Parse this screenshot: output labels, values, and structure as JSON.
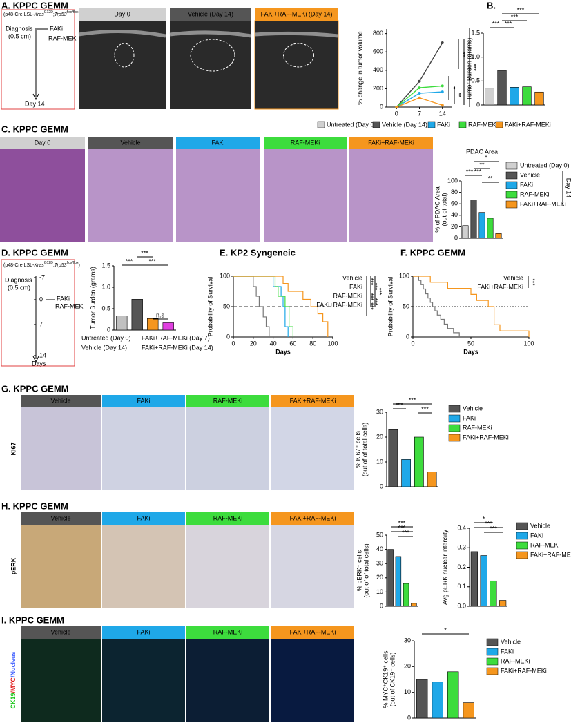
{
  "panels": {
    "A": {
      "title": "A. KPPC GEMM",
      "genotype": [
        "(p48-Cre;LSL-",
        "Kras",
        "G12D",
        ";",
        "Trp53",
        "flox/flox",
        ")"
      ],
      "diagnosis": "Diagnosis",
      "size": "(0.5 cm)",
      "drug1": "FAKi",
      "drug2": "RAF-MEKi",
      "end": "Day 14",
      "images": [
        "Day 0",
        "Vehicle (Day 14)",
        "FAKi+RAF-MEKi (Day 14)"
      ],
      "colors": [
        "#d0d0d0",
        "#555555",
        "#f5961e"
      ]
    },
    "B": {
      "title": "B."
    },
    "C": {
      "title": "C. KPPC GEMM",
      "legend": [
        "Untreated (Day 0)",
        "Vehicle (Day 14)",
        "FAKi",
        "RAF-MEKi",
        "FAKi+RAF-MEKi"
      ],
      "images": [
        "Day 0",
        "Vehicle",
        "FAKi",
        "RAF-MEKi",
        "FAKi+RAF-MEKi"
      ],
      "colors": [
        "#d0d0d0",
        "#555555",
        "#1fa8e8",
        "#3ddc3d",
        "#f5961e"
      ]
    },
    "D": {
      "title": "D. KPPC GEMM",
      "genotype": [
        "(p48-Cre;LSL-",
        "Kras",
        "G12D",
        ";",
        "Trp53",
        "flox/flox",
        ")"
      ],
      "diagnosis": "Diagnosis",
      "size": "(0.5 cm)",
      "timeline": [
        "-7",
        "0",
        "7",
        "14"
      ],
      "days": "Days",
      "drug1": "FAKi",
      "drug2": "RAF-MEKi"
    },
    "E": {
      "title": "E. KP2 Syngeneic"
    },
    "F": {
      "title": "F. KPPC GEMM"
    },
    "G": {
      "title": "G. KPPC GEMM",
      "marker": "Ki67",
      "images": [
        "Vehicle",
        "FAKi",
        "RAF-MEKi",
        "FAKi+RAF-MEKi"
      ],
      "colors": [
        "#555555",
        "#1fa8e8",
        "#3ddc3d",
        "#f5961e"
      ]
    },
    "H": {
      "title": "H. KPPC GEMM",
      "marker": "pERK",
      "images": [
        "Vehicle",
        "FAKi",
        "RAF-MEKi",
        "FAKi+RAF-MEKi"
      ],
      "colors": [
        "#555555",
        "#1fa8e8",
        "#3ddc3d",
        "#f5961e"
      ]
    },
    "I": {
      "title": "I. KPPC GEMM",
      "marker": [
        "CK19",
        "/MYC",
        "/Nucleus"
      ],
      "images": [
        "Vehicle",
        "FAKi",
        "RAF-MEKi",
        "FAKi+RAF-MEKi"
      ],
      "colors": [
        "#555555",
        "#1fa8e8",
        "#3ddc3d",
        "#f5961e"
      ]
    }
  },
  "chart_data": [
    {
      "type": "line",
      "ylabel": "% change in tumor volume",
      "x": [
        0,
        7,
        14
      ],
      "xlim": [
        -3,
        17
      ],
      "xticks": [
        0,
        7,
        14
      ],
      "ylim": [
        0,
        850
      ],
      "yticks": [
        0,
        200,
        400,
        600,
        800
      ],
      "series": [
        {
          "color": "#444444",
          "values": [
            0,
            280,
            700
          ]
        },
        {
          "color": "#1fa8e8",
          "values": [
            0,
            150,
            165
          ]
        },
        {
          "color": "#3ddc3d",
          "values": [
            0,
            210,
            230
          ]
        },
        {
          "color": "#f5961e",
          "values": [
            0,
            100,
            20
          ]
        }
      ],
      "annotations": [
        "**",
        "***",
        "***",
        "*",
        "**"
      ]
    },
    {
      "type": "bar",
      "ylabel": "Tumor Burden (grams)",
      "categories": [
        null,
        null,
        null,
        null,
        null
      ],
      "values": [
        0.35,
        0.72,
        0.37,
        0.38,
        0.27
      ],
      "colors": [
        "#d0d0d0",
        "#555555",
        "#1fa8e8",
        "#3ddc3d",
        "#f5961e"
      ],
      "ylim": [
        0,
        1.5
      ],
      "yticks": [
        0,
        0.5,
        {
          "value": 1,
          "label": "1.0"
        },
        {
          "value": 1.5,
          "label": "1.5"
        }
      ],
      "annotations": [
        "***",
        "***",
        "***",
        "***"
      ]
    },
    {
      "type": "bar",
      "title": "PDAC Area",
      "ylabel": "% of PDAC Area",
      "ylabel2": "(out of total)",
      "categories": [
        "Untreated (Day 0)",
        "Vehicle",
        "FAKi",
        "RAF-MEKi",
        "FAKi+RAF-MEKi"
      ],
      "values": [
        22,
        67,
        45,
        35,
        8
      ],
      "colors": [
        "#d0d0d0",
        "#555555",
        "#1fa8e8",
        "#3ddc3d",
        "#f5961e"
      ],
      "ylim": [
        0,
        100
      ],
      "yticks": [
        0,
        20,
        40,
        60,
        80,
        100
      ],
      "legend": "right",
      "legend_note": "Day 14",
      "annotations": [
        "***",
        "***",
        "**",
        "*",
        "**"
      ]
    },
    {
      "type": "bar",
      "ylabel": "Tumor Burden (grams)",
      "categories": [
        "Untreated (Day 0)",
        "Vehicle (Day 14)",
        "FAKi+RAF-MEKi (Day 7)",
        "FAKi+RAF-MEKi (Day 14)"
      ],
      "values": [
        0.33,
        0.72,
        0.27,
        0.17
      ],
      "colors": [
        "#c0c0c0",
        "#555555",
        "#f5961e",
        "#e040e0"
      ],
      "ylim": [
        0,
        1.5
      ],
      "yticks": [
        0,
        0.5,
        {
          "value": 1,
          "label": "1.0"
        },
        {
          "value": 1.5,
          "label": "1.5"
        }
      ],
      "legend": "bottom",
      "annotations": [
        "***",
        "***",
        "***",
        "n.s"
      ]
    },
    {
      "type": "survival",
      "xlabel": "Days",
      "ylabel": "Probability of Survival",
      "xlim": [
        0,
        100
      ],
      "xticks": [
        0,
        20,
        40,
        60,
        80,
        100
      ],
      "ylim": [
        0,
        100
      ],
      "yticks": [
        0,
        50,
        100
      ],
      "series": [
        {
          "name": "Vehicle",
          "color": "#777777",
          "x": [
            0,
            20,
            23,
            26,
            30,
            33,
            36
          ],
          "values": [
            100,
            83,
            67,
            50,
            33,
            17,
            0
          ]
        },
        {
          "name": "FAKi",
          "color": "#1fa8e8",
          "x": [
            0,
            40,
            48,
            50,
            52,
            55
          ],
          "values": [
            100,
            83,
            67,
            50,
            17,
            0
          ]
        },
        {
          "name": "RAF-MEKi",
          "color": "#3ddc3d",
          "x": [
            0,
            42,
            45,
            52,
            56,
            60
          ],
          "values": [
            100,
            83,
            67,
            50,
            17,
            0
          ]
        },
        {
          "name": "FAKi+RAF-MEKi",
          "color": "#f5961e",
          "x": [
            0,
            50,
            55,
            70,
            78,
            85,
            90,
            95
          ],
          "values": [
            100,
            88,
            75,
            62,
            50,
            38,
            25,
            0
          ]
        }
      ],
      "annotations": [
        "***",
        "***",
        "***",
        "***",
        "***",
        "***"
      ]
    },
    {
      "type": "survival",
      "xlabel": "Days",
      "ylabel": "Probability of Survival",
      "xlim": [
        0,
        100
      ],
      "xticks": [
        0,
        50,
        100
      ],
      "ylim": [
        0,
        100
      ],
      "yticks": [
        0,
        50,
        100
      ],
      "series": [
        {
          "name": "Vehicle",
          "color": "#777777",
          "x": [
            0,
            5,
            7,
            9,
            11,
            13,
            15,
            17,
            19,
            21,
            24,
            27,
            30,
            35,
            40
          ],
          "values": [
            100,
            93,
            86,
            79,
            71,
            64,
            57,
            50,
            43,
            36,
            29,
            21,
            14,
            7,
            0
          ]
        },
        {
          "name": "FAKi+RAF-MEKi",
          "color": "#f5961e",
          "x": [
            0,
            15,
            30,
            50,
            55,
            65,
            70,
            75,
            100
          ],
          "values": [
            100,
            90,
            80,
            70,
            60,
            50,
            20,
            10,
            0
          ]
        }
      ],
      "annotations": [
        "***"
      ]
    },
    {
      "type": "bar",
      "ylabel": "% Ki67⁺ cells",
      "ylabel2": "(out of of total cells)",
      "categories": [
        "Vehicle",
        "FAKi",
        "RAF-MEKi",
        "FAKi+RAF-MEKi"
      ],
      "values": [
        23,
        11,
        20,
        6
      ],
      "colors": [
        "#555555",
        "#1fa8e8",
        "#3ddc3d",
        "#f5961e"
      ],
      "ylim": [
        0,
        30
      ],
      "yticks": [
        0,
        10,
        20,
        30
      ],
      "legend": "right",
      "annotations": [
        "***",
        "***",
        "***"
      ]
    },
    {
      "type": "bar",
      "ylabel": "% pERK⁺ cells",
      "ylabel2": "(out of of total cells)",
      "categories": [
        null,
        null,
        null,
        null
      ],
      "values": [
        40,
        35,
        16,
        2
      ],
      "colors": [
        "#555555",
        "#1fa8e8",
        "#3ddc3d",
        "#f5961e"
      ],
      "ylim": [
        0,
        50
      ],
      "yticks": [
        0,
        10,
        20,
        30,
        40,
        50
      ],
      "annotations": [
        "***",
        "***",
        "***"
      ]
    },
    {
      "type": "bar",
      "ylabel": "Avg pERK nuclear intensity",
      "categories": [
        "Vehicle",
        "FAKi",
        "RAF-MEKi",
        "FAKi+RAF-MEKi"
      ],
      "values": [
        0.28,
        0.26,
        0.13,
        0.03
      ],
      "colors": [
        "#555555",
        "#1fa8e8",
        "#3ddc3d",
        "#f5961e"
      ],
      "ylim": [
        0,
        0.4
      ],
      "yticks": [
        {
          "value": 0,
          "label": "0.0"
        },
        0.1,
        0.2,
        0.3,
        0.4
      ],
      "legend": "right",
      "annotations": [
        "*",
        "***",
        "***"
      ]
    },
    {
      "type": "bar",
      "ylabel": "% MYC⁺CK19⁺ cells",
      "ylabel2": "(out of CK19⁺ cells)",
      "categories": [
        "Vehicle",
        "FAKi",
        "RAF-MEKi",
        "FAKi+RAF-MEKi"
      ],
      "values": [
        15,
        14,
        18,
        6
      ],
      "colors": [
        "#555555",
        "#1fa8e8",
        "#3ddc3d",
        "#f5961e"
      ],
      "ylim": [
        0,
        30
      ],
      "yticks": [
        0,
        10,
        20,
        30
      ],
      "legend": "right",
      "annotations": [
        "*"
      ]
    }
  ]
}
